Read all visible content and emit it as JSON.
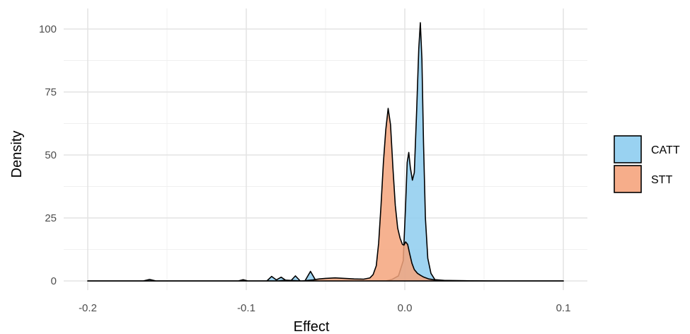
{
  "chart_data": {
    "type": "area",
    "title": "",
    "xlabel": "Effect",
    "ylabel": "Density",
    "xlim": [
      -0.2,
      0.1
    ],
    "ylim": [
      0,
      100
    ],
    "x_ticks": [
      -0.2,
      -0.1,
      0.0,
      0.1
    ],
    "x_tick_labels": [
      "-0.2",
      "-0.1",
      "0.0",
      "0.1"
    ],
    "y_ticks": [
      0,
      25,
      50,
      75,
      100
    ],
    "y_tick_labels": [
      "0",
      "25",
      "50",
      "75",
      "100"
    ],
    "grid": true,
    "legend_position": "right",
    "series": [
      {
        "name": "CATT",
        "color": "#8ecdef",
        "points": [
          [
            -0.2,
            0
          ],
          [
            -0.165,
            0
          ],
          [
            -0.161,
            0.6
          ],
          [
            -0.157,
            0
          ],
          [
            -0.12,
            0
          ],
          [
            -0.105,
            0
          ],
          [
            -0.102,
            0.5
          ],
          [
            -0.099,
            0
          ],
          [
            -0.087,
            0
          ],
          [
            -0.084,
            1.8
          ],
          [
            -0.081,
            0.4
          ],
          [
            -0.078,
            1.5
          ],
          [
            -0.075,
            0.2
          ],
          [
            -0.072,
            0
          ],
          [
            -0.069,
            2.0
          ],
          [
            -0.066,
            0
          ],
          [
            -0.063,
            0
          ],
          [
            -0.0595,
            3.8
          ],
          [
            -0.056,
            0
          ],
          [
            -0.04,
            0
          ],
          [
            -0.02,
            0
          ],
          [
            -0.012,
            0
          ],
          [
            -0.008,
            0.6
          ],
          [
            -0.004,
            2.0
          ],
          [
            -0.001,
            8
          ],
          [
            0.0005,
            30
          ],
          [
            0.0015,
            47
          ],
          [
            0.0025,
            51
          ],
          [
            0.0035,
            45
          ],
          [
            0.0048,
            40
          ],
          [
            0.006,
            43
          ],
          [
            0.0075,
            68
          ],
          [
            0.0088,
            92
          ],
          [
            0.0098,
            102.5
          ],
          [
            0.0108,
            88
          ],
          [
            0.0118,
            55
          ],
          [
            0.013,
            25
          ],
          [
            0.0145,
            9
          ],
          [
            0.0165,
            3
          ],
          [
            0.019,
            0.5
          ],
          [
            0.025,
            0.2
          ],
          [
            0.05,
            0
          ],
          [
            0.1,
            0
          ]
        ]
      },
      {
        "name": "STT",
        "color": "#f5a47d",
        "points": [
          [
            -0.2,
            0
          ],
          [
            -0.16,
            0
          ],
          [
            -0.1,
            0
          ],
          [
            -0.08,
            0
          ],
          [
            -0.075,
            0.3
          ],
          [
            -0.065,
            0
          ],
          [
            -0.058,
            0.4
          ],
          [
            -0.054,
            0.8
          ],
          [
            -0.05,
            1.0
          ],
          [
            -0.044,
            1.2
          ],
          [
            -0.038,
            1.0
          ],
          [
            -0.032,
            0.8
          ],
          [
            -0.026,
            0.7
          ],
          [
            -0.022,
            1.2
          ],
          [
            -0.02,
            2.5
          ],
          [
            -0.018,
            6
          ],
          [
            -0.0165,
            15
          ],
          [
            -0.015,
            30
          ],
          [
            -0.0135,
            47
          ],
          [
            -0.012,
            60
          ],
          [
            -0.0105,
            68.5
          ],
          [
            -0.009,
            62
          ],
          [
            -0.0075,
            45
          ],
          [
            -0.006,
            30
          ],
          [
            -0.0045,
            21
          ],
          [
            -0.003,
            17
          ],
          [
            -0.0015,
            14.5
          ],
          [
            -0.0005,
            14.2
          ],
          [
            0.0005,
            15.5
          ],
          [
            0.0018,
            14.5
          ],
          [
            0.003,
            11
          ],
          [
            0.0045,
            7
          ],
          [
            0.006,
            4.5
          ],
          [
            0.008,
            3
          ],
          [
            0.01,
            2.2
          ],
          [
            0.012,
            1.5
          ],
          [
            0.015,
            0.8
          ],
          [
            0.018,
            0.5
          ],
          [
            0.022,
            0.2
          ],
          [
            0.03,
            0.1
          ],
          [
            0.06,
            0
          ],
          [
            0.1,
            0
          ]
        ]
      }
    ]
  }
}
